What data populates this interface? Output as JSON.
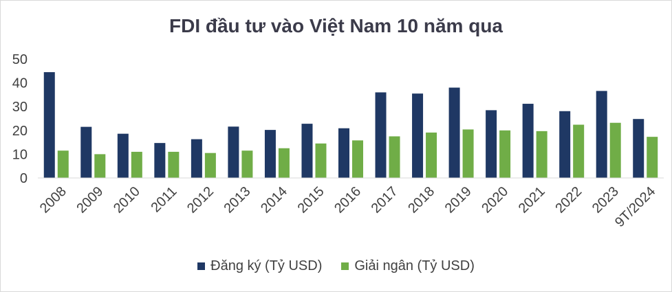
{
  "colors": {
    "registered": "#1f3864",
    "disbursed": "#70ad47"
  },
  "chart_data": {
    "type": "bar",
    "title": "FDI đầu tư vào Việt Nam 10 năm qua",
    "categories": [
      "2008",
      "2009",
      "2010",
      "2011",
      "2012",
      "2013",
      "2014",
      "2015",
      "2016",
      "2017",
      "2018",
      "2019",
      "2020",
      "2021",
      "2022",
      "2023",
      "9T/2024"
    ],
    "series": [
      {
        "name": "Đăng ký (Tỷ USD)",
        "values": [
          44.5,
          21.5,
          18.6,
          14.7,
          16.3,
          21.6,
          20.2,
          22.8,
          20.9,
          36.0,
          35.5,
          38.0,
          28.5,
          31.2,
          28.1,
          36.6,
          24.8
        ]
      },
      {
        "name": "Giải ngân (Tỷ USD)",
        "values": [
          11.5,
          10.0,
          11.0,
          11.0,
          10.5,
          11.5,
          12.5,
          14.5,
          15.8,
          17.5,
          19.1,
          20.4,
          20.0,
          19.7,
          22.4,
          23.2,
          17.3
        ]
      }
    ],
    "yticks": [
      "0",
      "10",
      "20",
      "30",
      "40",
      "50"
    ],
    "ylim": [
      0,
      50
    ],
    "legend_position": "bottom"
  }
}
